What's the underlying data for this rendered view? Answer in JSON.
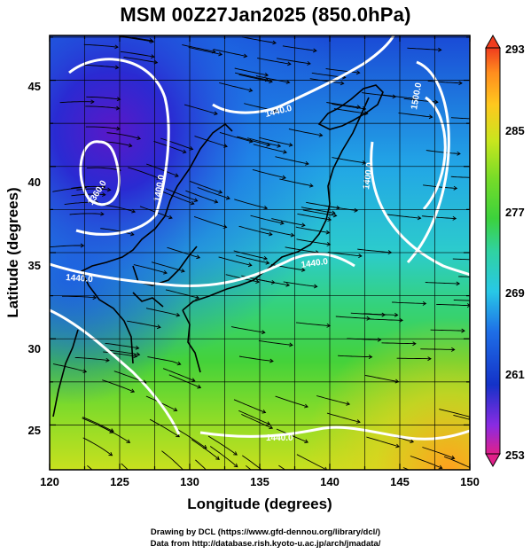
{
  "title": "MSM 00Z27Jan2025 (850.0hPa)",
  "credits": {
    "line1": "Drawing by DCL (https://www.gfd-dennou.org/library/dcl/)",
    "line2": "Data from http://database.rish.kyoto-u.ac.jp/arch/jmadata/"
  },
  "map": {
    "xlabel": "Longitude (degrees)",
    "ylabel": "Latitude  (degrees)",
    "xlim": [
      120,
      150
    ],
    "ylim": [
      22.4,
      47.6
    ],
    "xticks": [
      "120",
      "125",
      "130",
      "135",
      "140",
      "145",
      "150"
    ],
    "yticks": [
      "25",
      "30",
      "35",
      "40",
      "45"
    ],
    "grid": true,
    "contour_labels": [
      "1440.0",
      "1360.0",
      "1400.0",
      "1440.0",
      "1440.0",
      "1440.0",
      "1400.0",
      "1500.0"
    ],
    "contour_color": "#ffffff",
    "streamline_color": "#000000",
    "coastline_color": "#000000"
  },
  "colorbar": {
    "labels": [
      "293",
      "285",
      "277",
      "269",
      "261",
      "253"
    ],
    "min": 253,
    "max": 293,
    "colors": [
      "#e0208a",
      "#8a2be2",
      "#1432c8",
      "#1e6ee6",
      "#28c8e6",
      "#30d2a0",
      "#3cd23c",
      "#78dc28",
      "#c8e61e",
      "#ffc81e",
      "#ff8c1e",
      "#f03c1e"
    ]
  }
}
